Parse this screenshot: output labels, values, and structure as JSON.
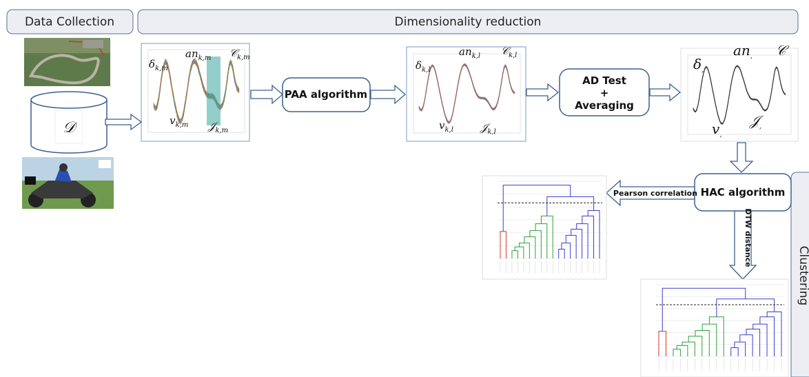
{
  "headers": {
    "data_collection": "Data Collection",
    "dimensionality_reduction": "Dimensionality reduction",
    "clustering": "Clustering"
  },
  "dataset_symbol": "𝒟",
  "steps": {
    "paa": "PAA algorithm",
    "ad_test": [
      "AD Test",
      "+",
      "Averaging"
    ],
    "hac": "HAC algorithm"
  },
  "edges": {
    "pearson": "Pearson correlation",
    "dtw": "DTW distance"
  },
  "panels": [
    {
      "labels": [
        {
          "symbol": "δ",
          "sub": "k,m"
        },
        {
          "symbol": "an",
          "sub": "k,m"
        },
        {
          "symbol": "𝒞",
          "sub": "k,m"
        },
        {
          "symbol": "v",
          "sub": "k,m"
        },
        {
          "symbol": "𝒥",
          "sub": "k,m"
        }
      ]
    },
    {
      "labels": [
        {
          "symbol": "δ",
          "sub": "k,l"
        },
        {
          "symbol": "an",
          "sub": "k,l"
        },
        {
          "symbol": "𝒞",
          "sub": "k,l"
        },
        {
          "symbol": "v",
          "sub": "k,l"
        },
        {
          "symbol": "𝒥",
          "sub": "k,l"
        }
      ]
    },
    {
      "labels": [
        {
          "symbol": "δ",
          "sub": ","
        },
        {
          "symbol": "an",
          "sub": ","
        },
        {
          "symbol": "𝒞"
        },
        {
          "symbol": "v",
          "sub": ","
        },
        {
          "symbol": "𝒥",
          "sub": ","
        }
      ]
    }
  ]
}
